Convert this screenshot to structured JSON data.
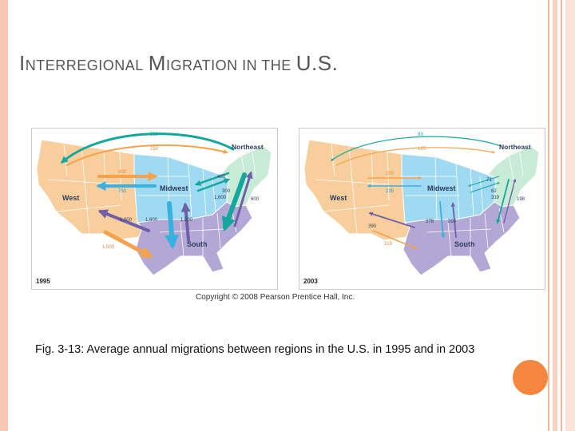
{
  "slide": {
    "title": {
      "part1_initial": "I",
      "part1_rest": "NTERREGIONAL",
      "part2_initial": "M",
      "part2_rest": "IGRATION IN THE",
      "part3": "U.S."
    },
    "copyright": "Copyright © 2008 Pearson Prentice Hall, Inc.",
    "caption": "Fig. 3-13: Average annual migrations between regions in the U.S. in 1995 and in 2003"
  },
  "colors": {
    "west": "#f8cf9c",
    "midwest": "#9fdaf2",
    "northeast": "#c7ebd4",
    "south": "#b3a8d5",
    "arrow_to_west": "#f6a24c",
    "arrow_to_south": "#6e5fa8",
    "arrow_midwest": "#38b0e0",
    "arrow_teal": "#13a79d",
    "accent_circle": "#f58640"
  },
  "maps": [
    {
      "year": "1995",
      "regions": {
        "northeast": "Northeast",
        "midwest": "Midwest",
        "west": "West",
        "south": "South"
      },
      "flows": {
        "ne_to_w": "500",
        "w_to_ne": "250",
        "w_to_mw": "800",
        "mw_to_w": "750",
        "ne_to_mw": "400",
        "mw_to_ne": "300",
        "ne_to_s": "1,600",
        "s_to_ne": "600",
        "s_to_w": "1,000",
        "w_to_s": "1,500",
        "mw_to_s": "1,600",
        "s_to_mw": "1,000"
      }
    },
    {
      "year": "2003",
      "regions": {
        "northeast": "Northeast",
        "midwest": "Midwest",
        "west": "West",
        "south": "South"
      },
      "flows": {
        "ne_to_w": "93",
        "w_to_ne": "125",
        "w_to_mw": "200",
        "mw_to_w": "235",
        "ne_to_mw": "71",
        "mw_to_ne": "62",
        "ne_to_s": "319",
        "s_to_ne": "198",
        "s_to_w": "390",
        "w_to_s": "319",
        "mw_to_s": "378",
        "s_to_mw": "393"
      }
    }
  ]
}
